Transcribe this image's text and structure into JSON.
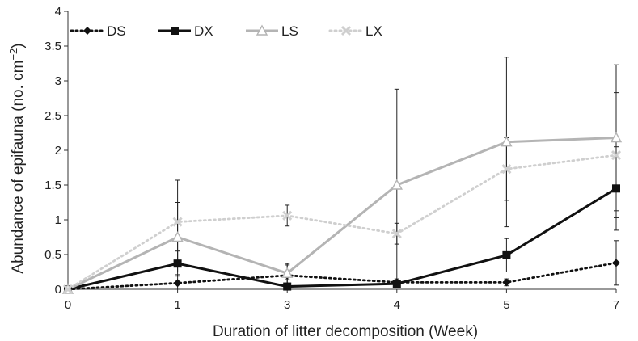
{
  "chart_data": {
    "type": "line",
    "xlabel": "Duration of  litter decomposition (Week)",
    "ylabel": "Abundance of epifauna (no. cm",
    "ylabel_sup": "−2",
    "ylabel_end": ")",
    "ylim": [
      0,
      4
    ],
    "yticks": [
      "0",
      "0.5",
      "1",
      "1.5",
      "2",
      "2.5",
      "3",
      "3.5",
      "4"
    ],
    "categories": [
      "0",
      "1",
      "3",
      "4",
      "5",
      "7"
    ],
    "grid": false,
    "legend_position": "top-left",
    "series": [
      {
        "name": "DS",
        "color": "#111111",
        "style": "dotted",
        "marker": "diamond",
        "values": [
          0,
          0.09,
          0.2,
          0.1,
          0.1,
          0.38
        ],
        "error": [
          0,
          0.12,
          0.15,
          0.05,
          0.05,
          0.32
        ]
      },
      {
        "name": "DX",
        "color": "#111111",
        "style": "solid",
        "marker": "square",
        "values": [
          0,
          0.37,
          0.04,
          0.08,
          0.49,
          1.45
        ],
        "error": [
          0,
          0.18,
          0.1,
          0.05,
          0.24,
          0.6
        ]
      },
      {
        "name": "LS",
        "color": "#b4b4b4",
        "style": "solid",
        "marker": "triangle",
        "values": [
          0,
          0.75,
          0.23,
          1.5,
          2.12,
          2.18
        ],
        "error": [
          0,
          0.5,
          0.14,
          1.38,
          1.22,
          1.05
        ]
      },
      {
        "name": "LX",
        "color": "#cfcfcf",
        "style": "dotted",
        "marker": "x",
        "values": [
          0,
          0.97,
          1.06,
          0.8,
          1.73,
          1.93
        ],
        "error": [
          0,
          0.6,
          0.15,
          0.15,
          0.45,
          0.9
        ]
      }
    ]
  }
}
